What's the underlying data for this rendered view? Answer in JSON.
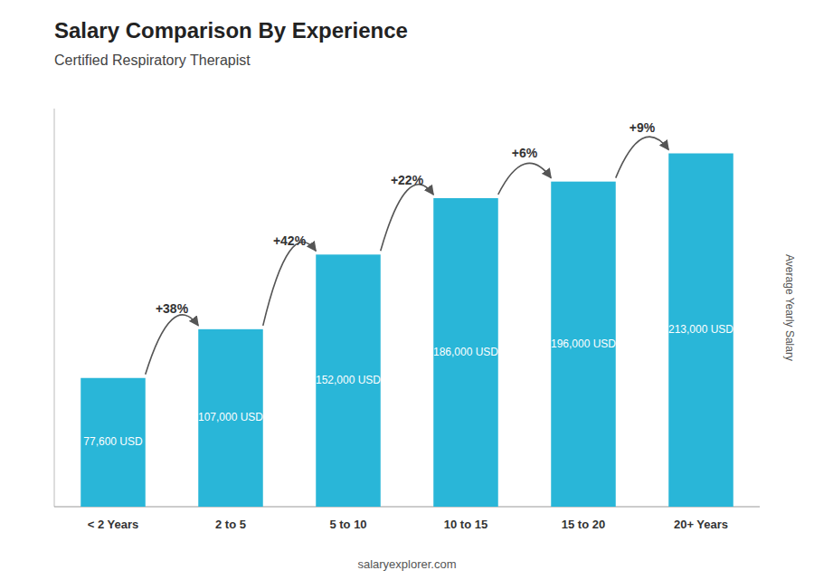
{
  "chart_data": {
    "type": "bar",
    "title": "Salary Comparison By Experience",
    "subtitle": "Certified Respiratory Therapist",
    "categories": [
      "< 2 Years",
      "2 to 5",
      "5 to 10",
      "10 to 15",
      "15 to 20",
      "20+ Years"
    ],
    "values": [
      77600,
      107000,
      152000,
      186000,
      196000,
      213000
    ],
    "value_labels": [
      "77,600 USD",
      "107,000 USD",
      "152,000 USD",
      "186,000 USD",
      "196,000 USD",
      "213,000 USD"
    ],
    "data_labels": true,
    "color": "#29b6d8",
    "annotations": [
      "+38%",
      "+42%",
      "+22%",
      "+6%",
      "+9%"
    ],
    "ylabel": "Average Yearly Salary",
    "footer": "salaryexplorer.com",
    "ylim": [
      0,
      240000
    ],
    "tick_labels": "x",
    "grid": false
  }
}
